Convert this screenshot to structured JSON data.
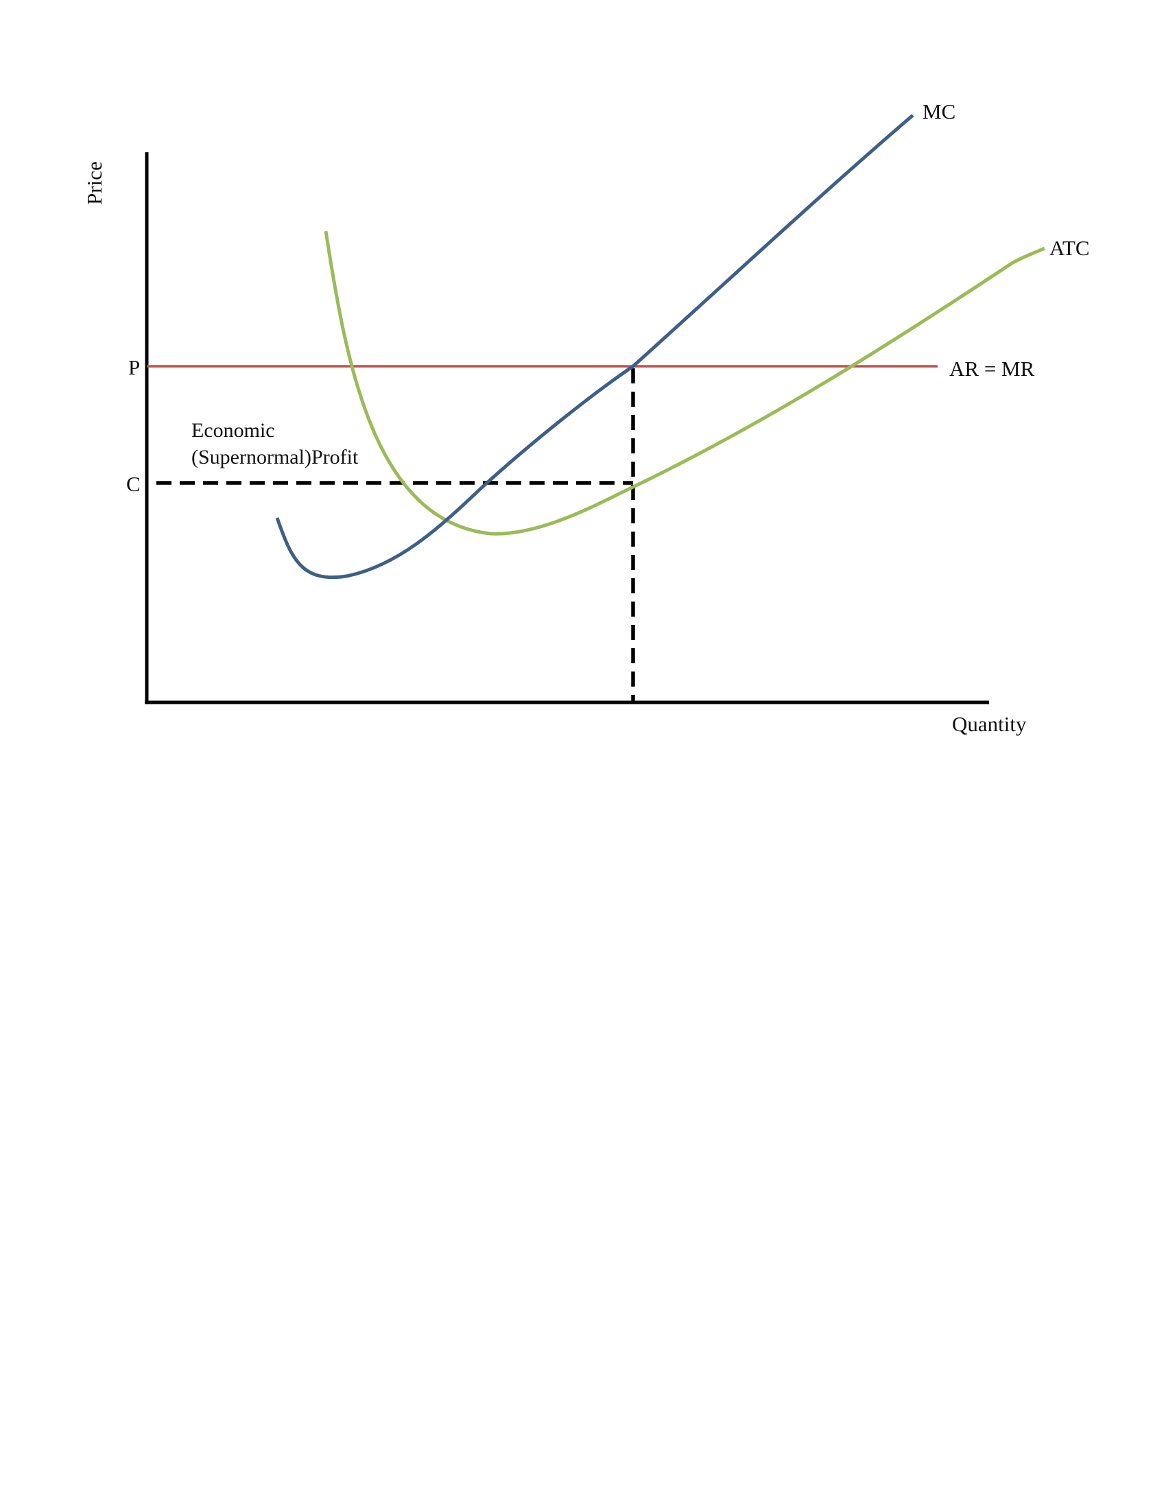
{
  "diagram": {
    "y_axis_label": "Price",
    "x_axis_label": "Quantity",
    "price_level_label": "P",
    "cost_level_label": "C",
    "profit_label_line1": "Economic",
    "profit_label_line2": "(Supernormal)Profit",
    "curves": [
      {
        "name": "MC",
        "color": "#3e5f88"
      },
      {
        "name": "ATC",
        "color": "#9bbb59"
      },
      {
        "name": "AR = MR",
        "color": "#c0504d"
      }
    ],
    "axis_color": "#000000",
    "dashed_line_color": "#000000"
  }
}
